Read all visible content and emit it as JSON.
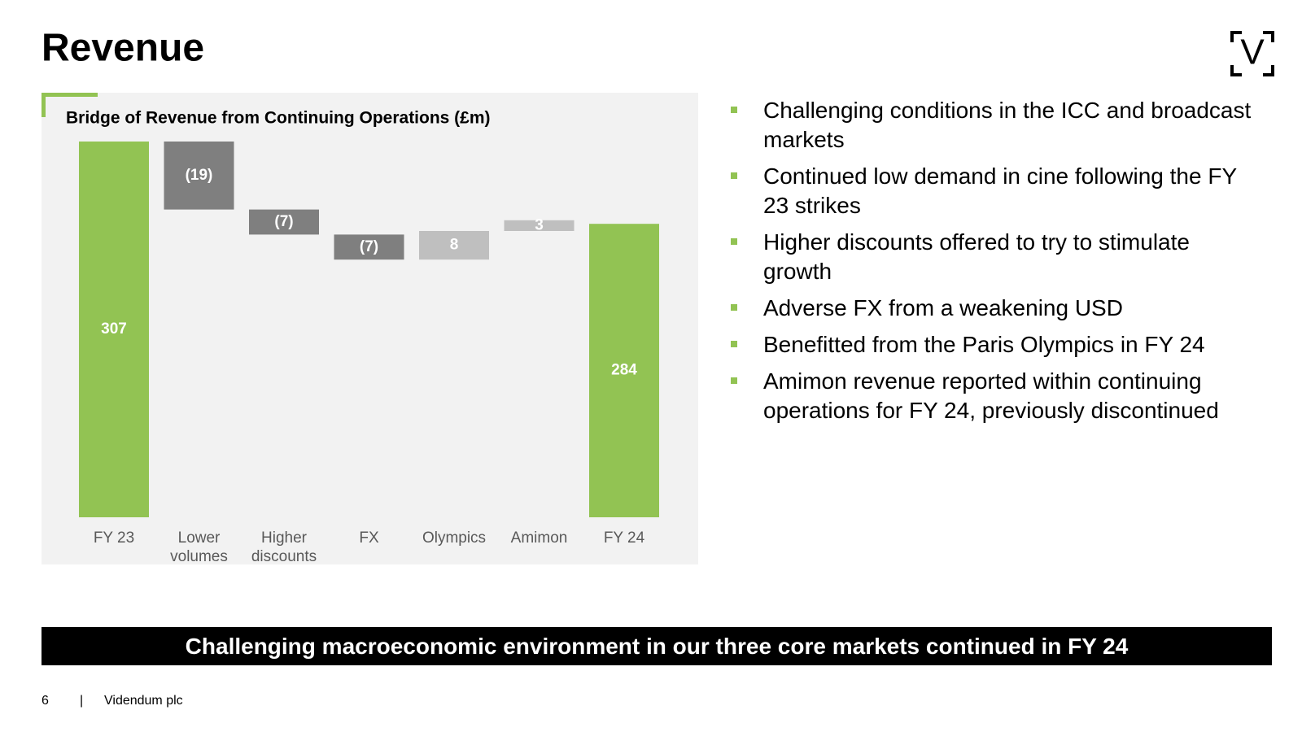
{
  "title": "Revenue",
  "logo": "V",
  "chart_data": {
    "type": "waterfall",
    "title": "Bridge of Revenue from Continuing Operations (£m)",
    "categories": [
      "FY 23",
      "Lower volumes",
      "Higher discounts",
      "FX",
      "Olympics",
      "Amimon",
      "FY 24"
    ],
    "measure": [
      "total",
      "relative",
      "relative",
      "relative",
      "relative",
      "relative",
      "total"
    ],
    "values": [
      307,
      -19,
      -7,
      -7,
      8,
      3,
      284
    ],
    "value_labels": [
      "307",
      "(19)",
      "(7)",
      "(7)",
      "8",
      "3",
      "284"
    ],
    "colors": [
      "#92c353",
      "#7f7f7f",
      "#7f7f7f",
      "#7f7f7f",
      "#bfbfbf",
      "#bfbfbf",
      "#92c353"
    ],
    "ylim": [
      202,
      307
    ]
  },
  "bullets": [
    "Challenging conditions in the ICC and broadcast markets",
    "Continued low demand in cine following the FY 23 strikes",
    "Higher discounts offered to try to stimulate growth",
    "Adverse FX from a weakening USD",
    "Benefitted from the Paris Olympics in FY 24",
    "Amimon revenue reported within continuing operations for FY 24, previously discontinued"
  ],
  "banner": "Challenging macroeconomic environment in our three core markets continued in FY 24",
  "footer": {
    "page": "6",
    "separator": "|",
    "company": "Videndum plc"
  }
}
